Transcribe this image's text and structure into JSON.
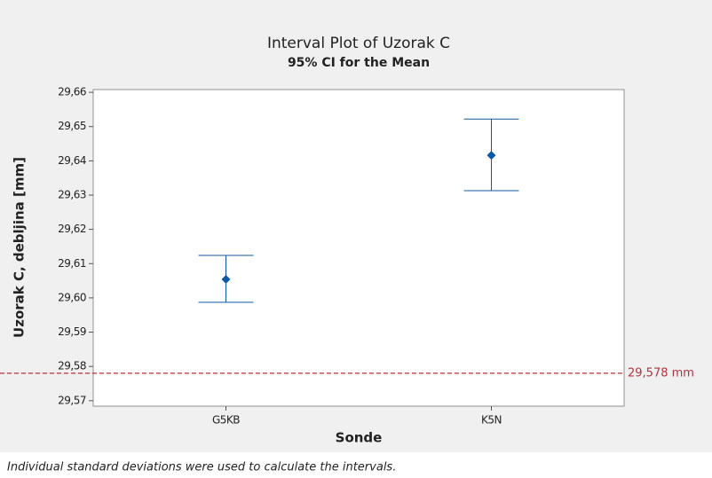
{
  "chart_data": {
    "type": "interval",
    "title": "Interval Plot of Uzorak C",
    "subtitle": "95% CI for the Mean",
    "x_label": "Sonde",
    "y_label": "Uzorak C, debljina [mm]",
    "footnote": "Individual standard deviations were used to calculate the intervals.",
    "categories": [
      "G5KB",
      "K5N"
    ],
    "series": [
      {
        "color": "#0c5aa6",
        "values": [
          29.6054,
          29.6416
        ],
        "lower": [
          29.5987,
          29.6313
        ],
        "upper": [
          29.6124,
          29.6522
        ]
      }
    ],
    "reference_line": {
      "value": 29.578,
      "label": "29,578 mm",
      "color": "#b5323e"
    },
    "ylim": [
      29.5684,
      29.6608
    ],
    "yticks": [
      {
        "value": 29.57,
        "label": "29,57"
      },
      {
        "value": 29.58,
        "label": "29,58"
      },
      {
        "value": 29.59,
        "label": "29,59"
      },
      {
        "value": 29.6,
        "label": "29,60"
      },
      {
        "value": 29.61,
        "label": "29,61"
      },
      {
        "value": 29.62,
        "label": "29,62"
      },
      {
        "value": 29.63,
        "label": "29,63"
      },
      {
        "value": 29.64,
        "label": "29,64"
      },
      {
        "value": 29.65,
        "label": "29,65"
      },
      {
        "value": 29.66,
        "label": "29,66"
      }
    ]
  }
}
